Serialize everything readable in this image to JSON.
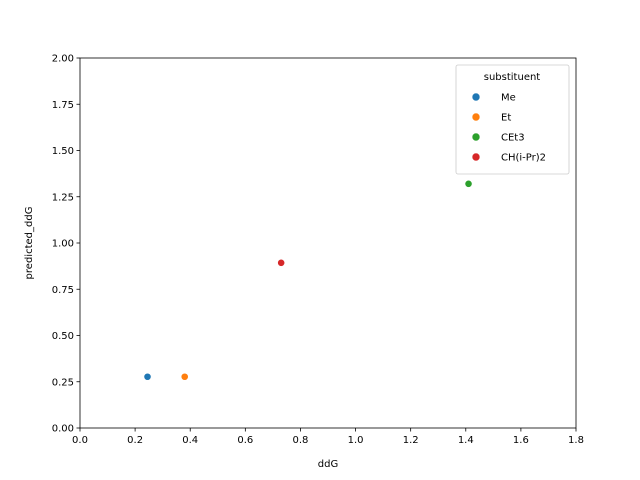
{
  "chart_data": {
    "type": "scatter",
    "title": "",
    "xlabel": "ddG",
    "ylabel": "predicted_ddG",
    "xlim": [
      0,
      1.8
    ],
    "ylim": [
      0,
      2.0
    ],
    "xticks": [
      0,
      0.2,
      0.4,
      0.6,
      0.8,
      1.0,
      1.2,
      1.4,
      1.6,
      1.8
    ],
    "xtick_labels": [
      "0.0",
      "0.2",
      "0.4",
      "0.6",
      "0.8",
      "1.0",
      "1.2",
      "1.4",
      "1.6",
      "1.8"
    ],
    "yticks": [
      0,
      0.25,
      0.5,
      0.75,
      1.0,
      1.25,
      1.5,
      1.75,
      2.0
    ],
    "ytick_labels": [
      "0.00",
      "0.25",
      "0.50",
      "0.75",
      "1.00",
      "1.25",
      "1.50",
      "1.75",
      "2.00"
    ],
    "grid": false,
    "legend": {
      "title": "substituent",
      "position": "top-right"
    },
    "series": [
      {
        "name": "Me",
        "color": "#1f77b4",
        "points": [
          {
            "x": 0.245,
            "y": 0.277
          }
        ]
      },
      {
        "name": "Et",
        "color": "#ff7f0e",
        "points": [
          {
            "x": 0.38,
            "y": 0.277
          }
        ]
      },
      {
        "name": "CEt3",
        "color": "#2ca02c",
        "points": [
          {
            "x": 1.41,
            "y": 1.32
          }
        ]
      },
      {
        "name": "CH(i-Pr)2",
        "color": "#d62728",
        "points": [
          {
            "x": 0.73,
            "y": 0.893
          }
        ]
      }
    ]
  }
}
